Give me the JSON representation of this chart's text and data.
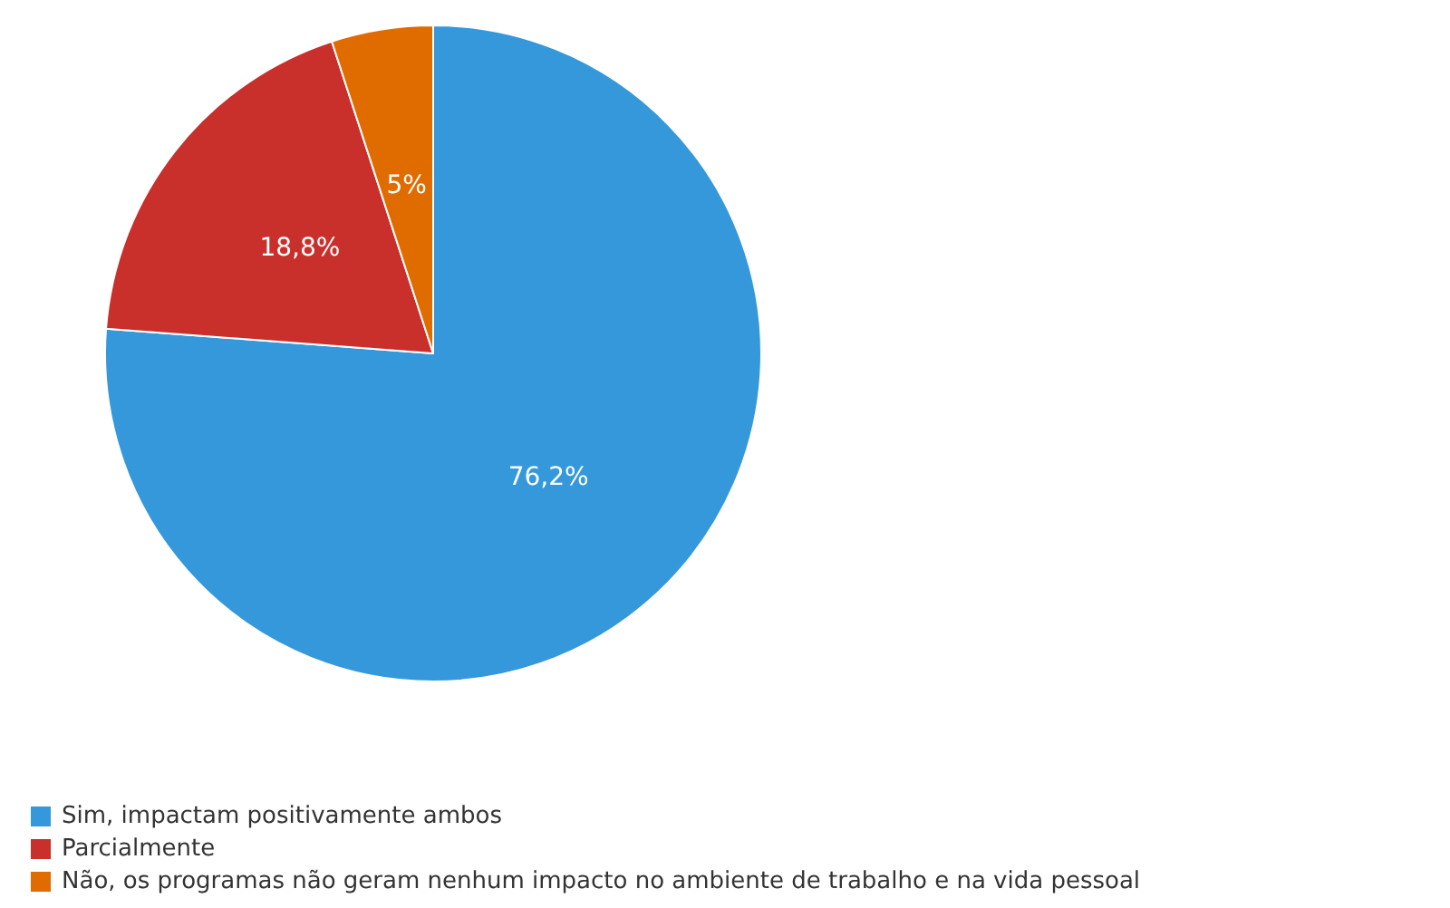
{
  "chart_data": {
    "type": "pie",
    "categories": [
      "Sim, impactam positivamente ambos",
      "Parcialmente",
      "Não, os programas não geram nenhum impacto no ambiente de trabalho e na vida pessoal"
    ],
    "values": [
      76.2,
      18.8,
      5
    ],
    "colors": [
      "#3498db",
      "#c9302c",
      "#e06c00"
    ],
    "value_labels": [
      "76,2%",
      "18,8%",
      "5%"
    ],
    "legend": "bottom"
  }
}
